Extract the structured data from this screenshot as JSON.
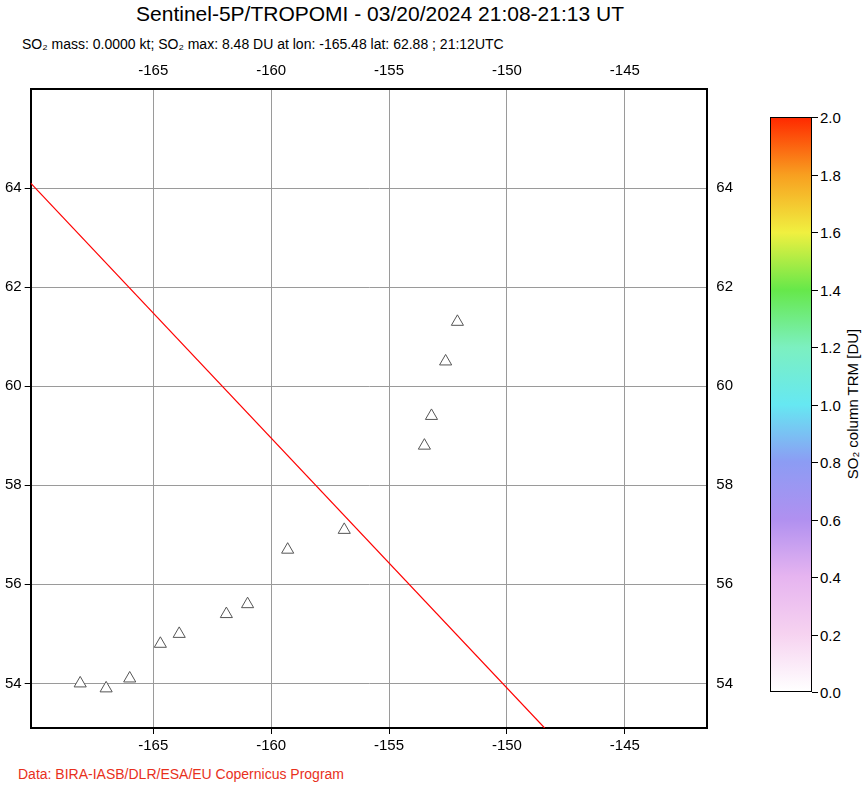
{
  "title": "Sentinel-5P/TROPOMI - 03/20/2024 21:08-21:13 UT",
  "subtitle": "SO₂ mass: 0.0000 kt; SO₂ max: 8.48 DU at lon: -165.48 lat: 62.88 ; 21:12UTC",
  "credit": "Data: BIRA-IASB/DLR/ESA/EU Copernicus Program",
  "chart_data": {
    "type": "scatter",
    "xlim": [
      -170.2,
      -141.5
    ],
    "xticks": [
      -165,
      -160,
      -155,
      -150,
      -145
    ],
    "ylim": [
      53.1,
      66
    ],
    "yticks": [
      54,
      56,
      58,
      60,
      62,
      64
    ],
    "grid": true,
    "series": [
      {
        "type": "scatter",
        "marker": "triangle",
        "color": "#555555",
        "x": [
          -152.1,
          -152.6,
          -153.2,
          -153.5,
          -156.9,
          -159.3,
          -161.0,
          -161.9,
          -163.9,
          -164.7,
          -166.0,
          -167.0,
          -168.1
        ],
        "values": [
          61.3,
          60.5,
          59.4,
          58.8,
          57.1,
          56.7,
          55.6,
          55.4,
          55.0,
          54.8,
          54.1,
          53.9,
          54.0
        ]
      },
      {
        "type": "line",
        "line_style": "solid",
        "color": "#ff0000",
        "x": [
          -170.2,
          -148.4
        ],
        "values": [
          64.1,
          53.1
        ]
      }
    ],
    "colorbar": {
      "label": "SO₂ column TRM [DU]",
      "range": [
        0,
        2
      ],
      "ticks": [
        {
          "value": 0,
          "label": "0.0"
        },
        {
          "value": 0.2,
          "label": "0.2"
        },
        {
          "value": 0.4,
          "label": "0.4"
        },
        {
          "value": 0.6,
          "label": "0.6"
        },
        {
          "value": 0.8,
          "label": "0.8"
        },
        {
          "value": 1,
          "label": "1.0"
        },
        {
          "value": 1.2,
          "label": "1.2"
        },
        {
          "value": 1.4,
          "label": "1.4"
        },
        {
          "value": 1.6,
          "label": "1.6"
        },
        {
          "value": 1.8,
          "label": "1.8"
        },
        {
          "value": 2,
          "label": "2.0"
        }
      ]
    }
  }
}
